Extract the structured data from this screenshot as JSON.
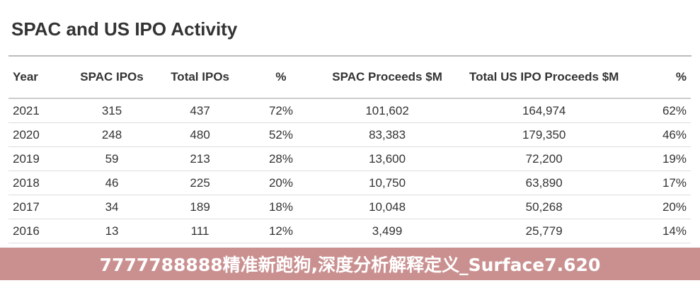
{
  "title": "SPAC and US IPO Activity",
  "columns": [
    "Year",
    "SPAC IPOs",
    "Total IPOs",
    "%",
    "SPAC Proceeds $M",
    "Total US IPO Proceeds $M",
    "%"
  ],
  "rows": [
    [
      "2021",
      "315",
      "437",
      "72%",
      "101,602",
      "164,974",
      "62%"
    ],
    [
      "2020",
      "248",
      "480",
      "52%",
      "83,383",
      "179,350",
      "46%"
    ],
    [
      "2019",
      "59",
      "213",
      "28%",
      "13,600",
      "72,200",
      "19%"
    ],
    [
      "2018",
      "46",
      "225",
      "20%",
      "10,750",
      "63,890",
      "17%"
    ],
    [
      "2017",
      "34",
      "189",
      "18%",
      "10,048",
      "50,268",
      "20%"
    ],
    [
      "2016",
      "13",
      "111",
      "12%",
      "3,499",
      "25,779",
      "14%"
    ]
  ],
  "banner": "7777788888精准新跑狗,深度分析解释定义_Surface7.620"
}
